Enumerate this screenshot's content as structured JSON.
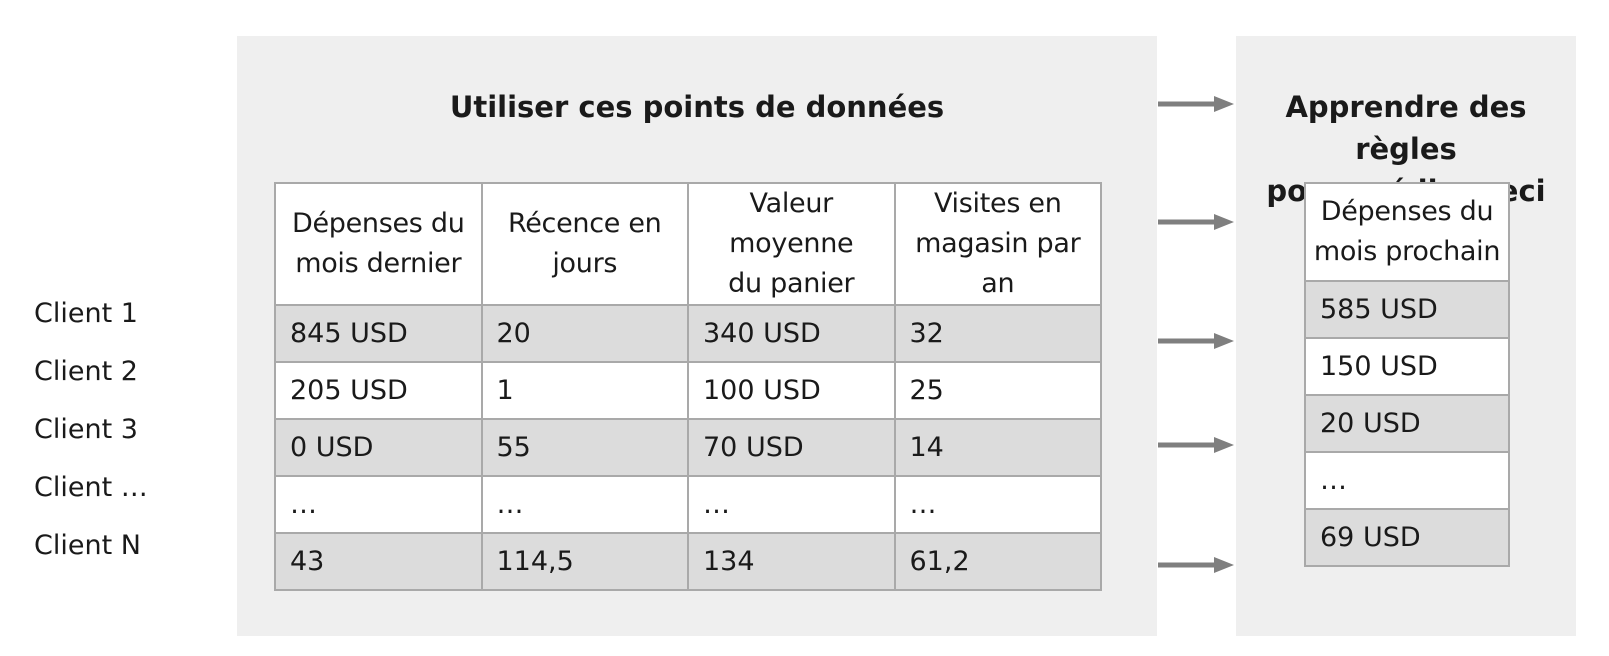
{
  "left_title": "Utiliser ces points de données",
  "right_title_line1": "Apprendre des règles",
  "right_title_line2": "pour prédire ceci",
  "columns": [
    {
      "line1": "Dépenses du",
      "line2": "mois dernier"
    },
    {
      "line1": "Récence en",
      "line2": "jours"
    },
    {
      "line1": "Valeur moyenne",
      "line2": "du panier"
    },
    {
      "line1": "Visites en",
      "line2": "magasin par an"
    }
  ],
  "target_column": {
    "line1": "Dépenses du",
    "line2": "mois prochain"
  },
  "rows": [
    {
      "label": "Client 1",
      "cells": [
        "845 USD",
        "20",
        "340 USD",
        "32"
      ],
      "target": "585 USD"
    },
    {
      "label": "Client 2",
      "cells": [
        "205 USD",
        "1",
        "100 USD",
        "25"
      ],
      "target": "150 USD"
    },
    {
      "label": "Client 3",
      "cells": [
        "0 USD",
        "55",
        "70 USD",
        "14"
      ],
      "target": "20 USD"
    },
    {
      "label": "Client …",
      "cells": [
        "…",
        "…",
        "…",
        "…"
      ],
      "target": "…"
    },
    {
      "label": "Client N",
      "cells": [
        "43",
        "114,5",
        "134",
        "61,2"
      ],
      "target": "69 USD"
    }
  ],
  "colors": {
    "panel_bg": "#efefef",
    "shaded_row": "#dcdcdc",
    "border": "#a9a9a9",
    "arrow": "#7f7f7f"
  },
  "icons": [
    "arrow-right-icon"
  ]
}
